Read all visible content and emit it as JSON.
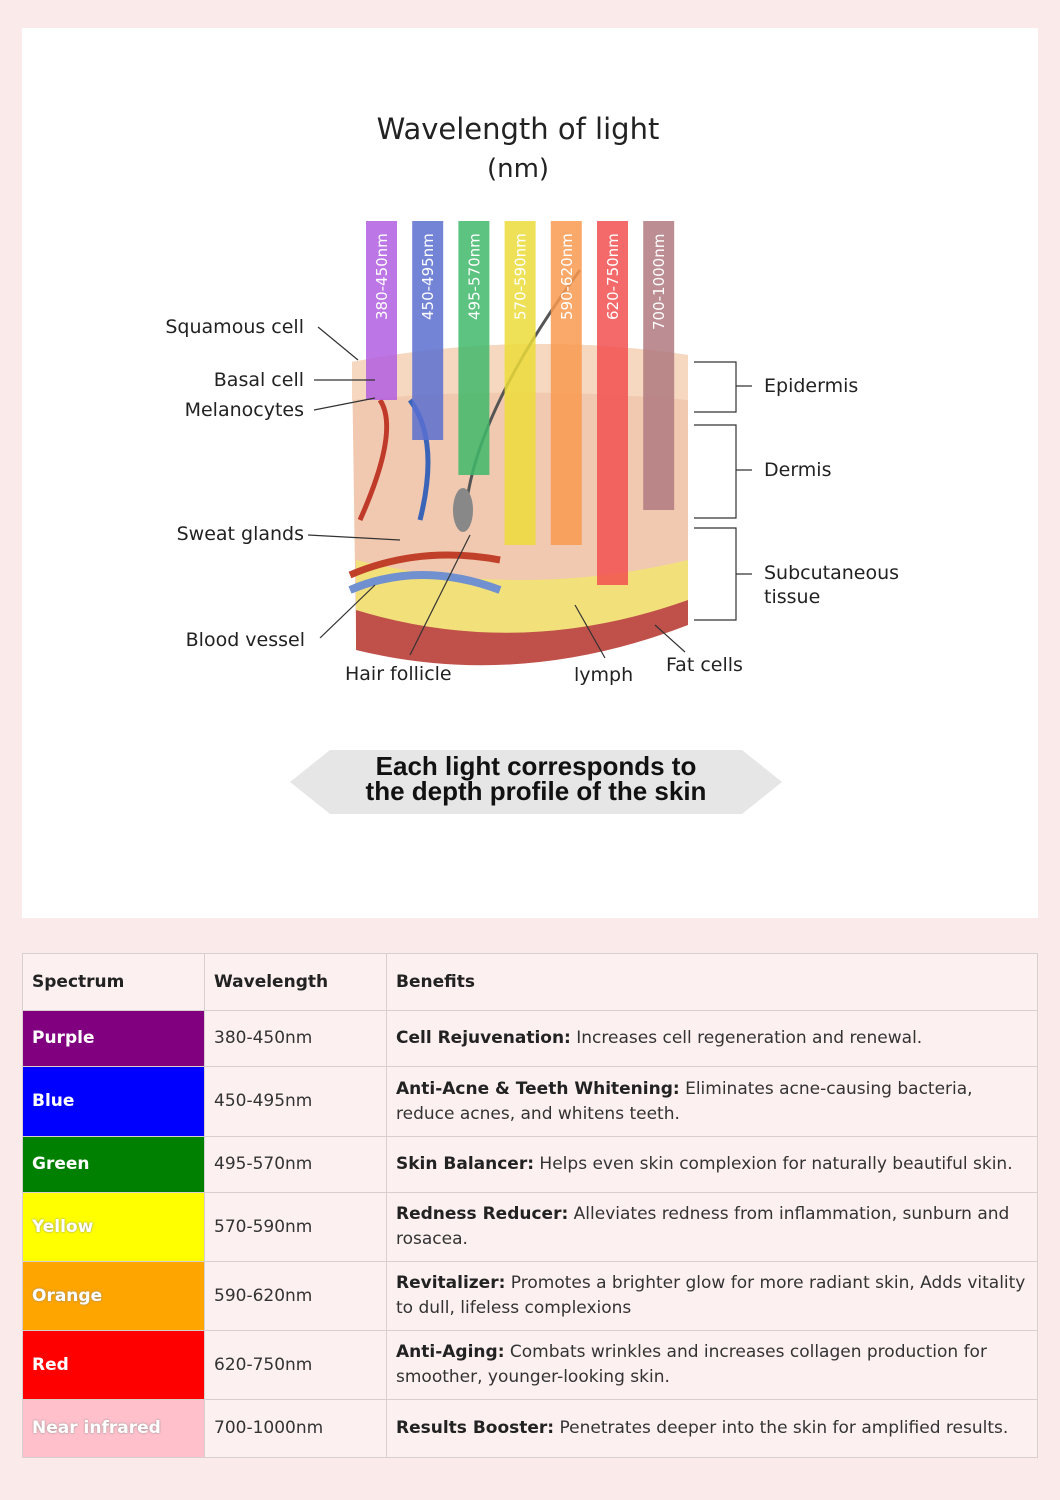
{
  "diagram": {
    "title": "Wavelength of light",
    "unit": "(nm)",
    "bars": [
      {
        "label": "380-450nm",
        "color": "#b25ee0"
      },
      {
        "label": "450-495nm",
        "color": "#5a6fd0"
      },
      {
        "label": "495-570nm",
        "color": "#3fb86a"
      },
      {
        "label": "570-590nm",
        "color": "#ecdc3a"
      },
      {
        "label": "590-620nm",
        "color": "#f99a50"
      },
      {
        "label": "620-750nm",
        "color": "#f25050"
      },
      {
        "label": "700-1000nm",
        "color": "#b07a80"
      }
    ],
    "left_labels": {
      "squamous": "Squamous cell",
      "basal": "Basal cell",
      "melanocytes": "Melanocytes",
      "sweat": "Sweat glands",
      "blood": "Blood vessel"
    },
    "bottom_labels": {
      "hair": "Hair follicle",
      "lymph": "lymph",
      "fat": "Fat cells"
    },
    "right_labels": {
      "epidermis": "Epidermis",
      "dermis": "Dermis",
      "subcutaneous_1": "Subcutaneous",
      "subcutaneous_2": "tissue"
    },
    "banner_line1": "Each light corresponds to",
    "banner_line2": "the depth profile of the skin"
  },
  "table": {
    "headers": [
      "Spectrum",
      "Wavelength",
      "Benefits"
    ],
    "rows": [
      {
        "spectrum": "Purple",
        "color": "#800080",
        "wavelength": "380-450nm",
        "title": "Cell Rejuvenation:",
        "text": " Increases cell regeneration and renewal."
      },
      {
        "spectrum": "Blue",
        "color": "#0000ff",
        "wavelength": "450-495nm",
        "title": "Anti-Acne & Teeth Whitening:",
        "text": " Eliminates acne-causing bacteria, reduce acnes, and whitens teeth."
      },
      {
        "spectrum": "Green",
        "color": "#008000",
        "wavelength": "495-570nm",
        "title": "Skin Balancer:",
        "text": " Helps even skin complexion for naturally beautiful skin."
      },
      {
        "spectrum": "Yellow",
        "color": "#ffff00",
        "wavelength": "570-590nm",
        "title": "Redness Reducer:",
        "text": " Alleviates redness from inflammation, sunburn and rosacea."
      },
      {
        "spectrum": "Orange",
        "color": "#ffa500",
        "wavelength": "590-620nm",
        "title": "Revitalizer:",
        "text": " Promotes a brighter glow for more radiant skin, Adds vitality to dull, lifeless complexions"
      },
      {
        "spectrum": "Red",
        "color": "#ff0000",
        "wavelength": "620-750nm",
        "title": "Anti-Aging:",
        "text": " Combats wrinkles and increases collagen production for smoother, younger-looking skin."
      },
      {
        "spectrum": "Near infrared",
        "color": "#ffc0cb",
        "wavelength": "700-1000nm",
        "title": "Results Booster:",
        "text": " Penetrates deeper into the skin for amplified results."
      }
    ]
  }
}
